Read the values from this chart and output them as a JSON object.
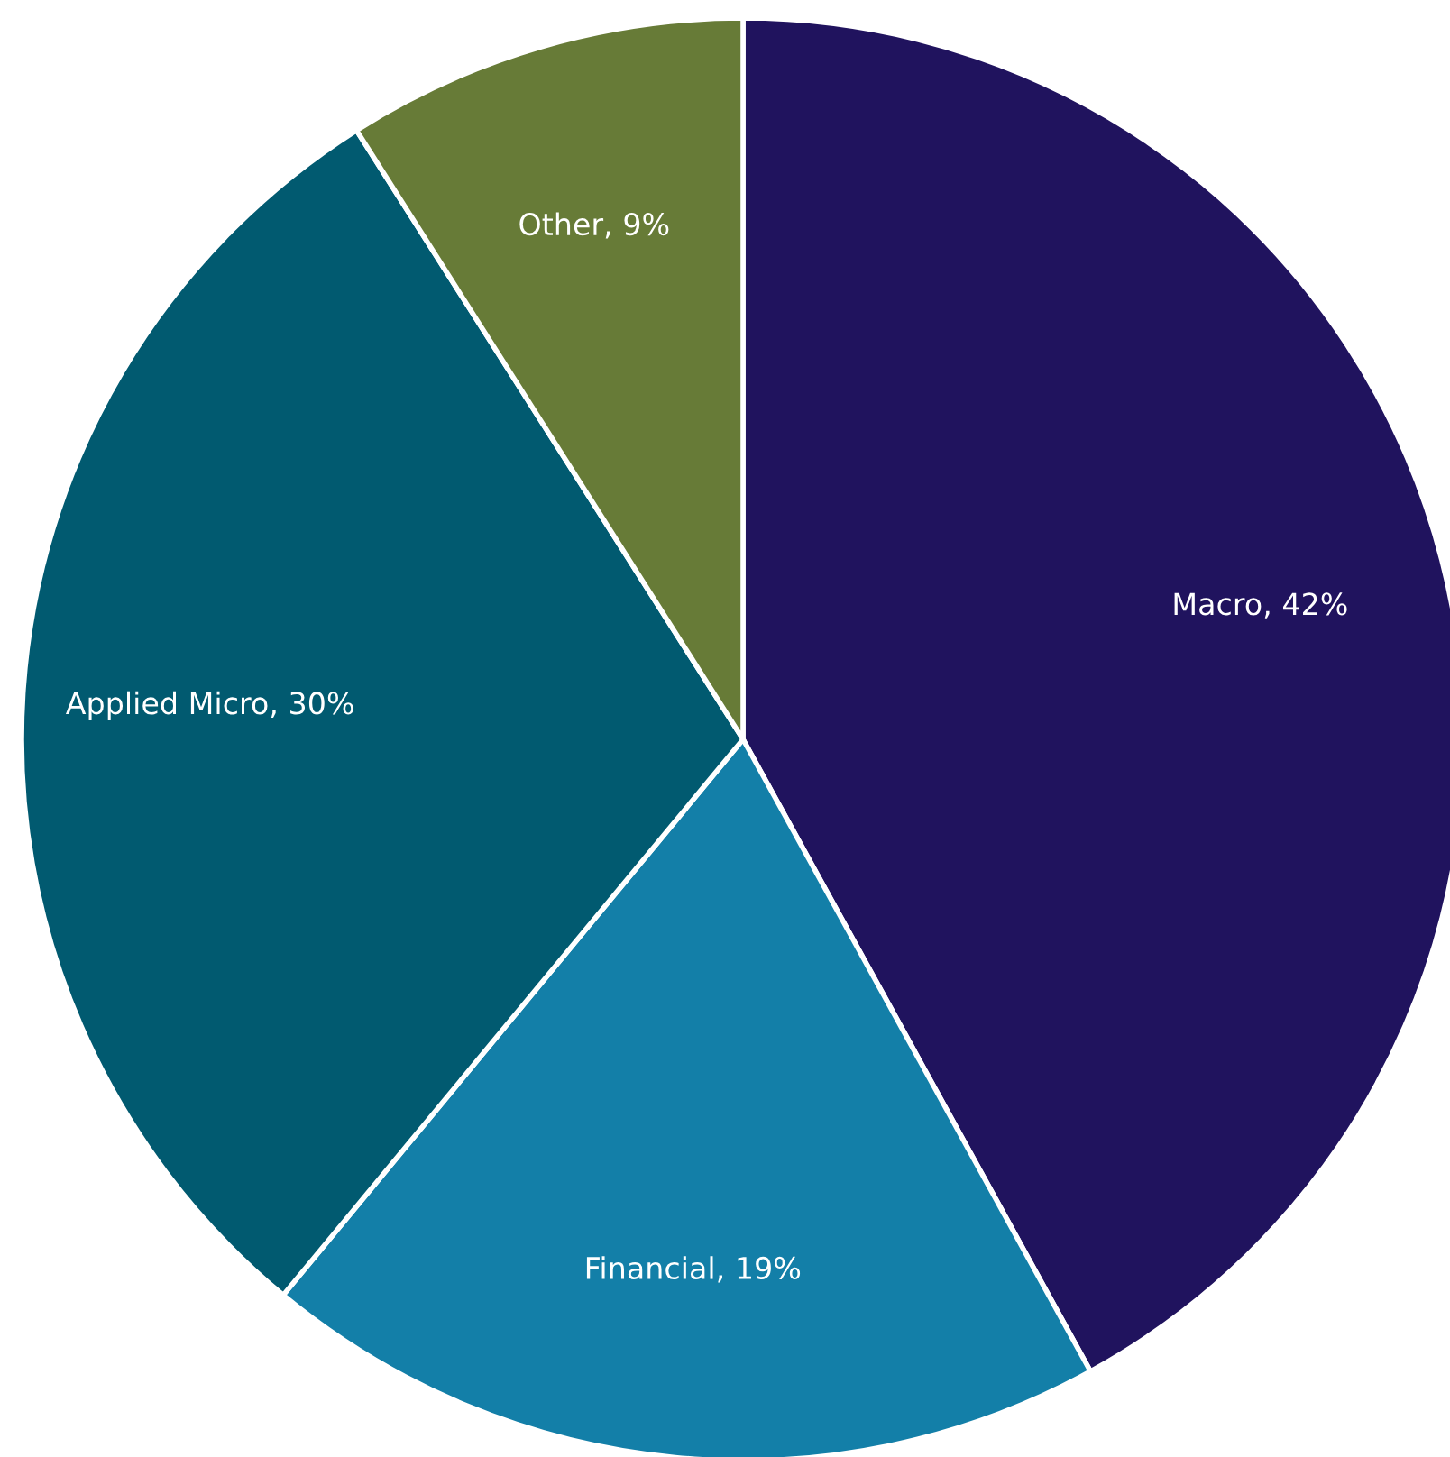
{
  "chart_data": {
    "type": "pie",
    "categories": [
      "Macro, 42%",
      "Financial, 19%",
      "Applied Micro, 30%",
      "Other, 9%"
    ],
    "values": [
      42,
      19,
      30,
      9
    ],
    "colors": [
      "#20135e",
      "#137fa8",
      "#015a70",
      "#677b37"
    ],
    "legend": false
  }
}
